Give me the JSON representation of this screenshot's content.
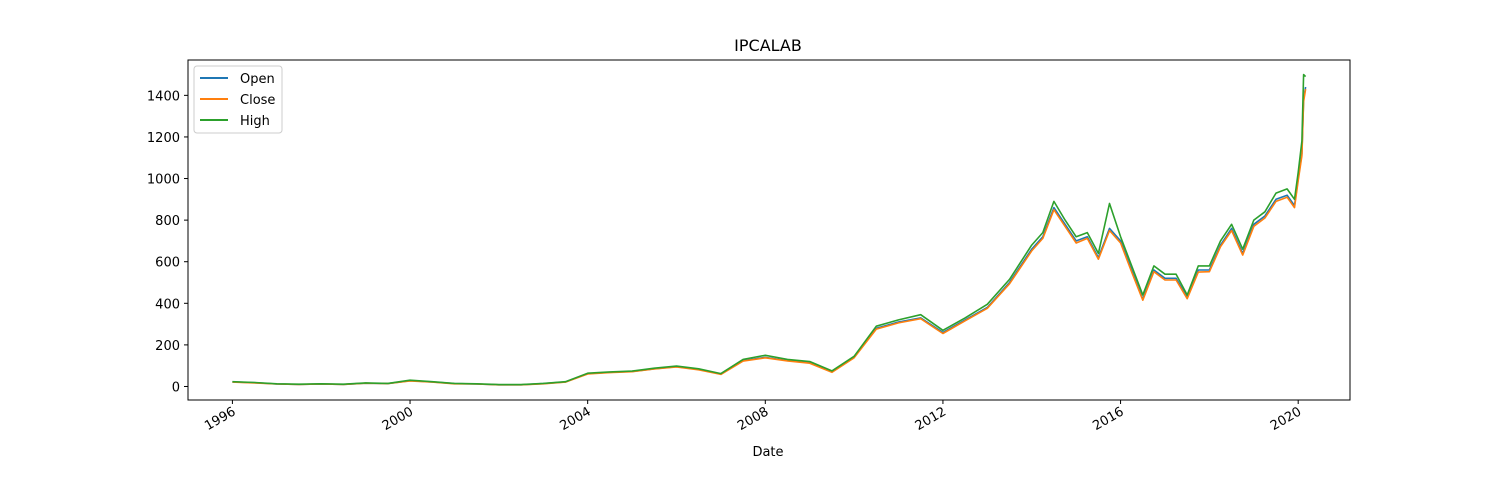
{
  "chart_data": {
    "type": "line",
    "title": "IPCALAB",
    "xlabel": "Date",
    "ylabel": "",
    "xlim": [
      "1995-01-01",
      "2021-03-01"
    ],
    "ylim": [
      -65,
      1570
    ],
    "x_ticks": [
      "1996",
      "2000",
      "2004",
      "2008",
      "2012",
      "2016",
      "2020"
    ],
    "y_ticks": [
      0,
      200,
      400,
      600,
      800,
      1000,
      1200,
      1400
    ],
    "grid": false,
    "legend_position": "upper left",
    "series": [
      {
        "name": "Open",
        "color": "#1f77b4"
      },
      {
        "name": "Close",
        "color": "#ff7f0e"
      },
      {
        "name": "High",
        "color": "#2ca02c"
      }
    ],
    "x": [
      "1996-01-01",
      "1996-07-01",
      "1997-01-01",
      "1997-07-01",
      "1998-01-01",
      "1998-07-01",
      "1999-01-01",
      "1999-07-01",
      "2000-01-01",
      "2000-07-01",
      "2001-01-01",
      "2001-07-01",
      "2002-01-01",
      "2002-07-01",
      "2003-01-01",
      "2003-07-01",
      "2004-01-01",
      "2004-07-01",
      "2005-01-01",
      "2005-07-01",
      "2006-01-01",
      "2006-07-01",
      "2007-01-01",
      "2007-07-01",
      "2008-01-01",
      "2008-07-01",
      "2009-01-01",
      "2009-07-01",
      "2010-01-01",
      "2010-07-01",
      "2011-01-01",
      "2011-07-01",
      "2012-01-01",
      "2012-07-01",
      "2013-01-01",
      "2013-07-01",
      "2014-01-01",
      "2014-04-01",
      "2014-07-01",
      "2014-10-01",
      "2015-01-01",
      "2015-04-01",
      "2015-07-01",
      "2015-10-01",
      "2016-01-01",
      "2016-04-01",
      "2016-07-01",
      "2016-10-01",
      "2017-01-01",
      "2017-04-01",
      "2017-07-01",
      "2017-10-01",
      "2018-01-01",
      "2018-04-01",
      "2018-07-01",
      "2018-10-01",
      "2019-01-01",
      "2019-04-01",
      "2019-07-01",
      "2019-10-01",
      "2019-12-01",
      "2020-01-01",
      "2020-02-01",
      "2020-02-15",
      "2020-03-01"
    ],
    "values": {
      "Open": [
        22,
        18,
        12,
        10,
        12,
        10,
        16,
        14,
        28,
        22,
        14,
        12,
        8,
        8,
        14,
        22,
        62,
        68,
        72,
        85,
        95,
        82,
        60,
        125,
        140,
        125,
        115,
        70,
        140,
        280,
        310,
        330,
        260,
        320,
        380,
        500,
        660,
        720,
        860,
        780,
        700,
        720,
        620,
        760,
        700,
        560,
        420,
        560,
        520,
        520,
        430,
        560,
        560,
        680,
        760,
        640,
        780,
        820,
        900,
        920,
        870,
        1000,
        1120,
        1380,
        1440
      ],
      "Close": [
        21,
        17,
        12,
        10,
        12,
        10,
        16,
        14,
        27,
        21,
        13,
        12,
        8,
        8,
        13,
        21,
        60,
        67,
        71,
        84,
        94,
        80,
        58,
        122,
        138,
        123,
        112,
        68,
        138,
        276,
        306,
        326,
        255,
        316,
        376,
        494,
        652,
        712,
        850,
        770,
        690,
        712,
        612,
        750,
        690,
        550,
        415,
        552,
        512,
        512,
        422,
        550,
        552,
        672,
        750,
        632,
        770,
        810,
        890,
        910,
        860,
        990,
        1110,
        1370,
        1430
      ],
      "High": [
        23,
        19,
        13,
        11,
        13,
        11,
        17,
        15,
        30,
        23,
        15,
        13,
        9,
        9,
        15,
        23,
        64,
        70,
        74,
        88,
        98,
        85,
        62,
        130,
        150,
        130,
        120,
        75,
        145,
        290,
        320,
        345,
        270,
        330,
        395,
        515,
        680,
        740,
        890,
        800,
        720,
        740,
        640,
        880,
        720,
        580,
        440,
        580,
        540,
        540,
        440,
        580,
        580,
        700,
        780,
        660,
        800,
        840,
        930,
        950,
        900,
        1030,
        1180,
        1500,
        1490
      ]
    }
  }
}
